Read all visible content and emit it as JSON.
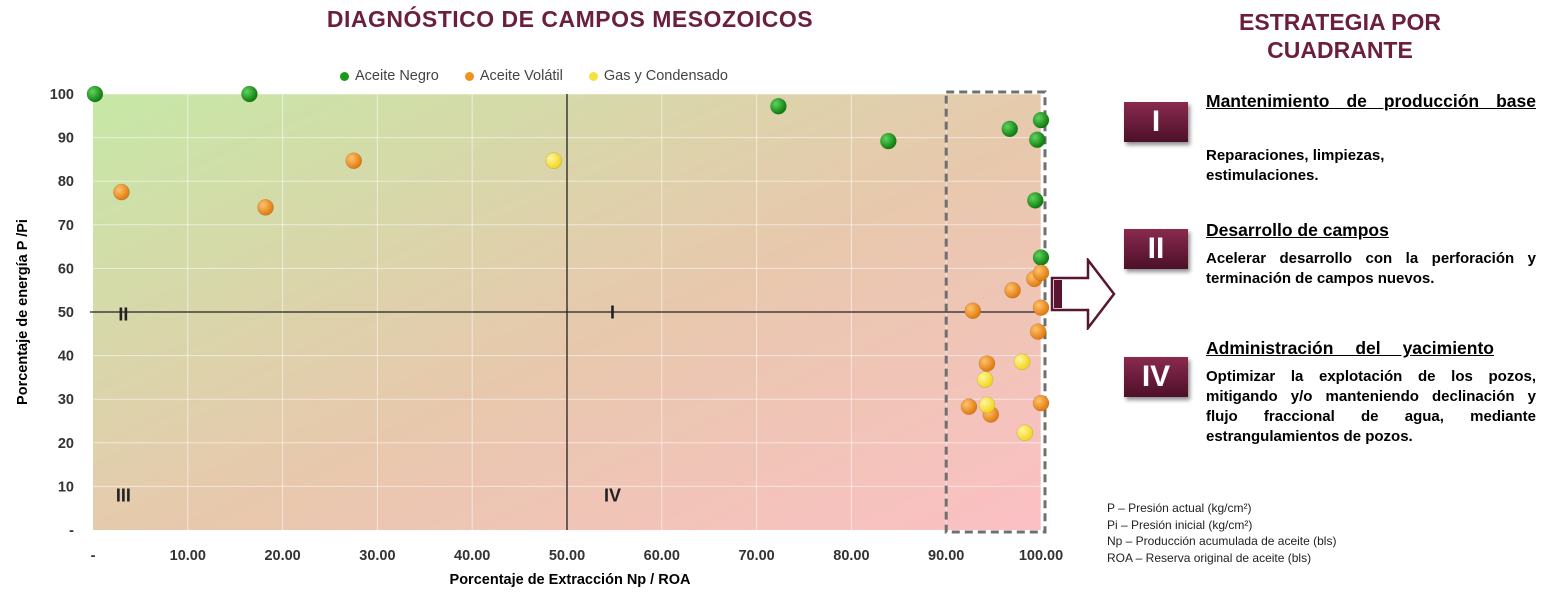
{
  "chart_data": {
    "type": "scatter",
    "title": "DIAGNÓSTICO DE CAMPOS MESOZOICOS",
    "xlabel": "Porcentaje de Extracción Np / ROA",
    "ylabel": "Porcentaje de energía P /Pi",
    "xlim": [
      0,
      100
    ],
    "ylim": [
      0,
      100
    ],
    "x_ticks": [
      "-",
      "10.00",
      "20.00",
      "30.00",
      "40.00",
      "50.00",
      "60.00",
      "70.00",
      "80.00",
      "90.00",
      "100.00"
    ],
    "y_ticks": [
      "-",
      "10",
      "20",
      "30",
      "40",
      "50",
      "60",
      "70",
      "80",
      "90",
      "100"
    ],
    "grid": true,
    "legend_position": "top",
    "quadrant_labels": [
      {
        "label": "II",
        "x": 3.2,
        "y": 48
      },
      {
        "label": "I",
        "x": 54.8,
        "y": 48.5
      },
      {
        "label": "III",
        "x": 3.2,
        "y": 6.5
      },
      {
        "label": "IV",
        "x": 54.8,
        "y": 6.5
      }
    ],
    "highlight_region": {
      "x": [
        90,
        100
      ],
      "y": [
        0,
        100
      ]
    },
    "series": [
      {
        "name": "Aceite Negro",
        "color": "#1a9a1a",
        "points": [
          [
            0.2,
            100
          ],
          [
            16.5,
            100
          ],
          [
            72.3,
            97.2
          ],
          [
            83.9,
            89.2
          ],
          [
            96.7,
            92
          ],
          [
            100,
            94
          ],
          [
            99.6,
            89.5
          ],
          [
            99.4,
            75.6
          ],
          [
            100,
            62.5
          ]
        ]
      },
      {
        "name": "Aceite Volátil",
        "color": "#f0921e",
        "points": [
          [
            3,
            77.5
          ],
          [
            18.2,
            74
          ],
          [
            27.5,
            84.7
          ],
          [
            92.8,
            50.3
          ],
          [
            97,
            55
          ],
          [
            99.3,
            57.6
          ],
          [
            100,
            59
          ],
          [
            100,
            51
          ],
          [
            99.7,
            45.5
          ],
          [
            94.3,
            38.2
          ],
          [
            92.4,
            28.3
          ],
          [
            94.7,
            26.5
          ],
          [
            100,
            29.1
          ]
        ]
      },
      {
        "name": "Gas y Condensado",
        "color": "#f7e23d",
        "points": [
          [
            48.6,
            84.7
          ],
          [
            98,
            38.6
          ],
          [
            94.1,
            34.5
          ],
          [
            94.3,
            28.7
          ],
          [
            98.3,
            22.3
          ]
        ]
      }
    ]
  },
  "strategy": {
    "title_line1": "ESTRATEGIA POR",
    "title_line2": "CUADRANTE",
    "items": [
      {
        "badge": "I",
        "heading": "Mantenimiento de producción base",
        "description": "Reparaciones, limpiezas, estimulaciones."
      },
      {
        "badge": "II",
        "heading": "Desarrollo de campos",
        "description": "Acelerar desarrollo con la perforación y terminación de campos nuevos."
      },
      {
        "badge": "IV",
        "heading": "Administración del yacimiento",
        "description": "Optimizar la explotación de los pozos, mitigando y/o manteniendo declinación y flujo fraccional de agua, mediante estrangulamientos de pozos."
      }
    ]
  },
  "notes": [
    "P – Presión actual (kg/cm²)",
    "Pi – Presión inicial (kg/cm²)",
    "Np – Producción acumulada de aceite (bls)",
    "ROA – Reserva original de aceite (bls)"
  ],
  "colors": {
    "title": "#6b1f3d",
    "badge": "#6b1f3d",
    "top_left_bg": "#c6e8a6",
    "bottom_right_bg": "#fbc0c4"
  }
}
